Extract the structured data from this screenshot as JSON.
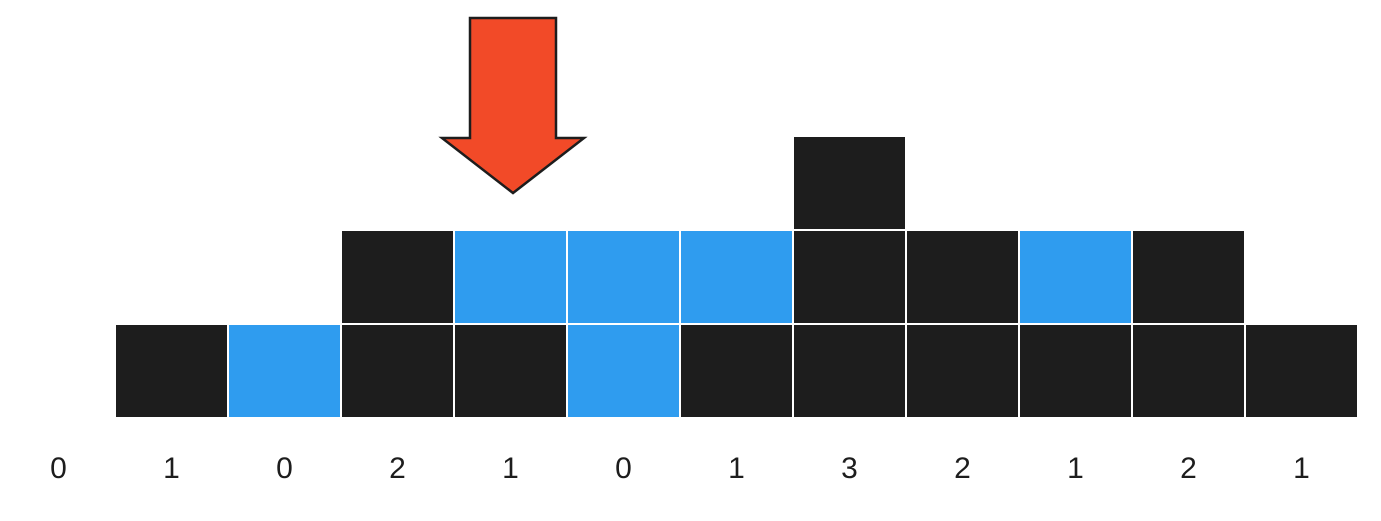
{
  "diagram": {
    "kind": "trapping-rain-water",
    "heights": [
      0,
      1,
      0,
      2,
      1,
      0,
      1,
      3,
      2,
      1,
      2,
      1
    ],
    "height_labels": [
      "0",
      "1",
      "0",
      "2",
      "1",
      "0",
      "1",
      "3",
      "2",
      "1",
      "2",
      "1"
    ],
    "water_levels": [
      0,
      1,
      1,
      2,
      2,
      2,
      2,
      3,
      2,
      2,
      2,
      1
    ],
    "pointer_column": 4,
    "colors": {
      "bar": "#1d1d1d",
      "water": "#2f9cef",
      "grid_line": "#ffffff",
      "arrow_fill": "#f24a28",
      "arrow_stroke": "#1d1d1d",
      "label": "#1d1d1d"
    },
    "icons": {
      "pointer": "down-arrow-icon"
    }
  }
}
